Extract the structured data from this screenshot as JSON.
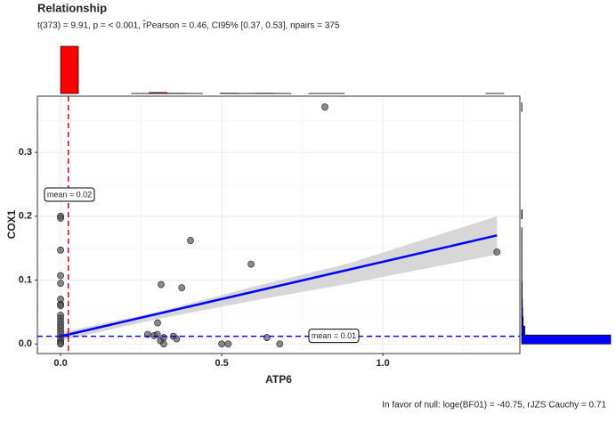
{
  "chart_data": {
    "type": "scatter",
    "title": "Relationship",
    "subtitle": "t(373) = 9.91, p = < 0.001, r̂Pearson = 0.46, CI95% [0.37, 0.53], npairs = 375",
    "caption": "In favor of null: loge(BF01) = -40.75, rJZS Cauchy = 0.71",
    "x_label": "ATP6",
    "y_label": "COX1",
    "xlim": [
      -0.072,
      1.425
    ],
    "ylim": [
      -0.015,
      0.388
    ],
    "xticks": [
      {
        "value": 0,
        "label": "0.0"
      },
      0.5,
      {
        "value": 1,
        "label": "1.0"
      }
    ],
    "yticks": [
      {
        "value": 0,
        "label": "0.0"
      },
      0.1,
      0.2,
      0.3
    ],
    "xminorticks": [
      0.25,
      0.75,
      1.25
    ],
    "yminorticks": [
      0.05,
      0.15,
      0.25,
      0.35
    ],
    "grid": true,
    "point_color": "#555555",
    "x": [
      0,
      0,
      0,
      0,
      0,
      0,
      0,
      0,
      0,
      0,
      0,
      0,
      0,
      0,
      0,
      0,
      0,
      0,
      0,
      0.82,
      0.403,
      0.591,
      0.312,
      0.376,
      1.354,
      0.301,
      0.27,
      0.29,
      0.3,
      0.31,
      0.32,
      0.35,
      0.36,
      0.32,
      0.5,
      0.52,
      0.64,
      0.68
    ],
    "y": [
      0.2,
      0.197,
      0.147,
      0.107,
      0.095,
      0.07,
      0.062,
      0.06,
      0.045,
      0.04,
      0.035,
      0.03,
      0.025,
      0.02,
      0.015,
      0.01,
      0.005,
      0.002,
      0,
      0.371,
      0.162,
      0.125,
      0.093,
      0.088,
      0.144,
      0.033,
      0.015,
      0.013,
      0.015,
      0.005,
      0.01,
      0.012,
      0.008,
      0,
      0,
      0,
      0.01,
      0
    ],
    "fit": {
      "color": "#0000ff",
      "x": [
        0,
        1.354
      ],
      "y": [
        0.012,
        0.17
      ]
    },
    "ci": {
      "color": "#d3d3d3",
      "x": [
        0,
        0.3,
        0.6,
        0.9,
        1.354
      ],
      "lower": [
        0.005,
        0.039,
        0.068,
        0.095,
        0.14
      ],
      "upper": [
        0.018,
        0.05,
        0.09,
        0.127,
        0.2
      ]
    },
    "x_mean": {
      "value": 0.024,
      "label": "mean = 0.02",
      "color": "#ff0000"
    },
    "y_mean": {
      "value": 0.012,
      "label": "mean = 0.01",
      "color": "#0000ff"
    },
    "top_hist": {
      "color": "#ff0000",
      "bins": [
        0,
        0.055,
        0.11,
        0.165,
        0.22,
        0.275,
        0.33,
        0.385,
        0.44,
        0.495,
        0.55,
        0.605,
        0.66,
        0.715,
        0.77,
        0.825,
        0.88,
        0.935,
        0.99,
        1.045,
        1.1,
        1.155,
        1.21,
        1.265,
        1.32,
        1.375
      ],
      "counts": [
        350,
        0,
        0,
        0,
        1,
        7,
        2,
        1,
        0,
        2,
        1,
        2,
        1,
        0,
        1,
        1,
        0,
        0,
        0,
        0,
        0,
        0,
        0,
        0,
        1
      ]
    },
    "right_hist": {
      "color": "#0000ff",
      "bins": [
        0,
        0.014,
        0.028,
        0.042,
        0.056,
        0.07,
        0.084,
        0.098,
        0.112,
        0.126,
        0.14,
        0.154,
        0.168,
        0.182,
        0.196,
        0.21,
        0.224,
        0.238,
        0.252,
        0.266,
        0.28,
        0.294,
        0.308,
        0.322,
        0.336,
        0.35,
        0.364,
        0.378
      ],
      "counts": [
        340,
        12,
        6,
        4,
        3,
        2,
        2,
        1,
        1,
        1,
        1,
        1,
        1,
        0,
        2,
        0,
        0,
        0,
        0,
        0,
        0,
        0,
        0,
        0,
        0,
        0,
        1
      ]
    }
  }
}
